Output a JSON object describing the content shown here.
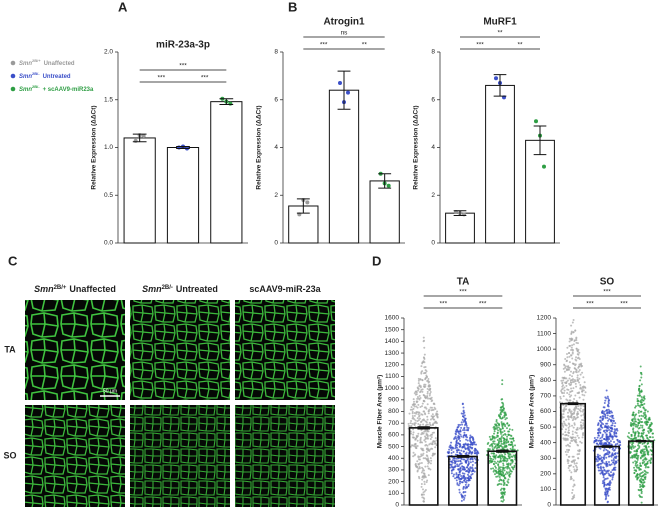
{
  "panels": [
    "A",
    "B",
    "C",
    "D"
  ],
  "legend": [
    {
      "gene": "Smn",
      "genotype": "2B/+",
      "label": "Unaffected",
      "color": "#9a9a9a"
    },
    {
      "gene": "Smn",
      "genotype": "2B/-",
      "label": "Untreated",
      "color": "#3b4fc8"
    },
    {
      "gene": "Smn",
      "genotype": "2B/-",
      "label": "+ scAAV9-miR23a",
      "color": "#2e9e44"
    }
  ],
  "image_grid": {
    "columns": [
      {
        "gene": "Smn",
        "genotype": "2B/+",
        "label": "Unaffected"
      },
      {
        "gene": "Smn",
        "genotype": "2B/-",
        "label": "Untreated"
      },
      {
        "label": "scAAV9-miR-23a"
      }
    ],
    "rows": [
      "TA",
      "SO"
    ],
    "scale_bar": "50 µm"
  },
  "chart_data": [
    {
      "type": "bar",
      "title": "miR-23a-3p",
      "y_label": "Relative Expression (ΔΔCt)",
      "values": [
        1.1,
        1.0,
        1.48
      ],
      "errors": [
        0.04,
        0.01,
        0.03
      ],
      "points": [
        [
          1.07,
          1.13,
          1.12
        ],
        [
          1.0,
          1.01,
          0.99
        ],
        [
          1.51,
          1.48,
          1.46
        ]
      ],
      "dot_colors": [
        "#9a9a9a",
        "#3b4fc8",
        "#2e9e44"
      ],
      "ylim": [
        0,
        2
      ],
      "yticks": [
        {
          "value": 0,
          "label": "0.0"
        },
        0.5,
        {
          "value": 1,
          "label": "1.0"
        },
        1.5,
        {
          "value": 2,
          "label": "2.0"
        }
      ],
      "comparisons": [
        {
          "from": 0,
          "to": 2,
          "label": "***"
        },
        {
          "from": 0,
          "to": 1,
          "label": "***"
        },
        {
          "from": 1,
          "to": 2,
          "label": "***"
        }
      ]
    },
    {
      "type": "bar",
      "title": "Atrogin1",
      "y_label": "Relative Expression (ΔΔCt)",
      "values": [
        1.55,
        6.4,
        2.6
      ],
      "errors": [
        0.3,
        0.8,
        0.3
      ],
      "points": [
        [
          1.2,
          1.8,
          1.7
        ],
        [
          6.7,
          5.9,
          6.3
        ],
        [
          2.9,
          2.5,
          2.4
        ]
      ],
      "dot_colors": [
        "#9a9a9a",
        "#3b4fc8",
        "#2e9e44"
      ],
      "ylim": [
        0,
        8
      ],
      "yticks": [
        0,
        2,
        4,
        6,
        8
      ],
      "comparisons": [
        {
          "from": 0,
          "to": 2,
          "label": "ns"
        },
        {
          "from": 0,
          "to": 1,
          "label": "***"
        },
        {
          "from": 1,
          "to": 2,
          "label": "**"
        }
      ]
    },
    {
      "type": "bar",
      "title": "MuRF1",
      "y_label": "Relative Expression (ΔΔCt)",
      "values": [
        1.25,
        6.6,
        4.3
      ],
      "errors": [
        0.1,
        0.45,
        0.6
      ],
      "points": [
        [
          1.3,
          1.25,
          1.2
        ],
        [
          6.9,
          6.7,
          6.1
        ],
        [
          5.1,
          4.5,
          3.2
        ]
      ],
      "dot_colors": [
        "#9a9a9a",
        "#3b4fc8",
        "#2e9e44"
      ],
      "ylim": [
        0,
        8
      ],
      "yticks": [
        0,
        2,
        4,
        6,
        8
      ],
      "comparisons": [
        {
          "from": 0,
          "to": 2,
          "label": "**"
        },
        {
          "from": 0,
          "to": 1,
          "label": "***"
        },
        {
          "from": 1,
          "to": 2,
          "label": "**"
        }
      ]
    },
    {
      "type": "bar",
      "title": "TA",
      "y_label": "Muscle Fiber Area (µm²)",
      "values": [
        660,
        415,
        460
      ],
      "errors": [
        10,
        8,
        9
      ],
      "dot_colors": [
        "#aaaaaa",
        "#3b4fc8",
        "#2e9e44"
      ],
      "ylim": [
        0,
        1600
      ],
      "yticks": [
        0,
        100,
        200,
        300,
        400,
        500,
        600,
        700,
        800,
        900,
        1000,
        1100,
        1200,
        1300,
        1400,
        1500,
        1600
      ],
      "comparisons": [
        {
          "from": 0,
          "to": 2,
          "label": "***"
        },
        {
          "from": 0,
          "to": 1,
          "label": "***"
        },
        {
          "from": 1,
          "to": 2,
          "label": "***"
        }
      ]
    },
    {
      "type": "bar",
      "title": "SO",
      "y_label": "Muscle Fiber Area (µm²)",
      "values": [
        650,
        375,
        410
      ],
      "errors": [
        6,
        5,
        5
      ],
      "dot_colors": [
        "#aaaaaa",
        "#3b4fc8",
        "#2e9e44"
      ],
      "ylim": [
        0,
        1200
      ],
      "yticks": [
        0,
        100,
        200,
        300,
        400,
        500,
        600,
        700,
        800,
        900,
        1000,
        1100,
        1200
      ],
      "comparisons": [
        {
          "from": 0,
          "to": 2,
          "label": "***"
        },
        {
          "from": 0,
          "to": 1,
          "label": "***"
        },
        {
          "from": 1,
          "to": 2,
          "label": "***"
        }
      ]
    }
  ]
}
